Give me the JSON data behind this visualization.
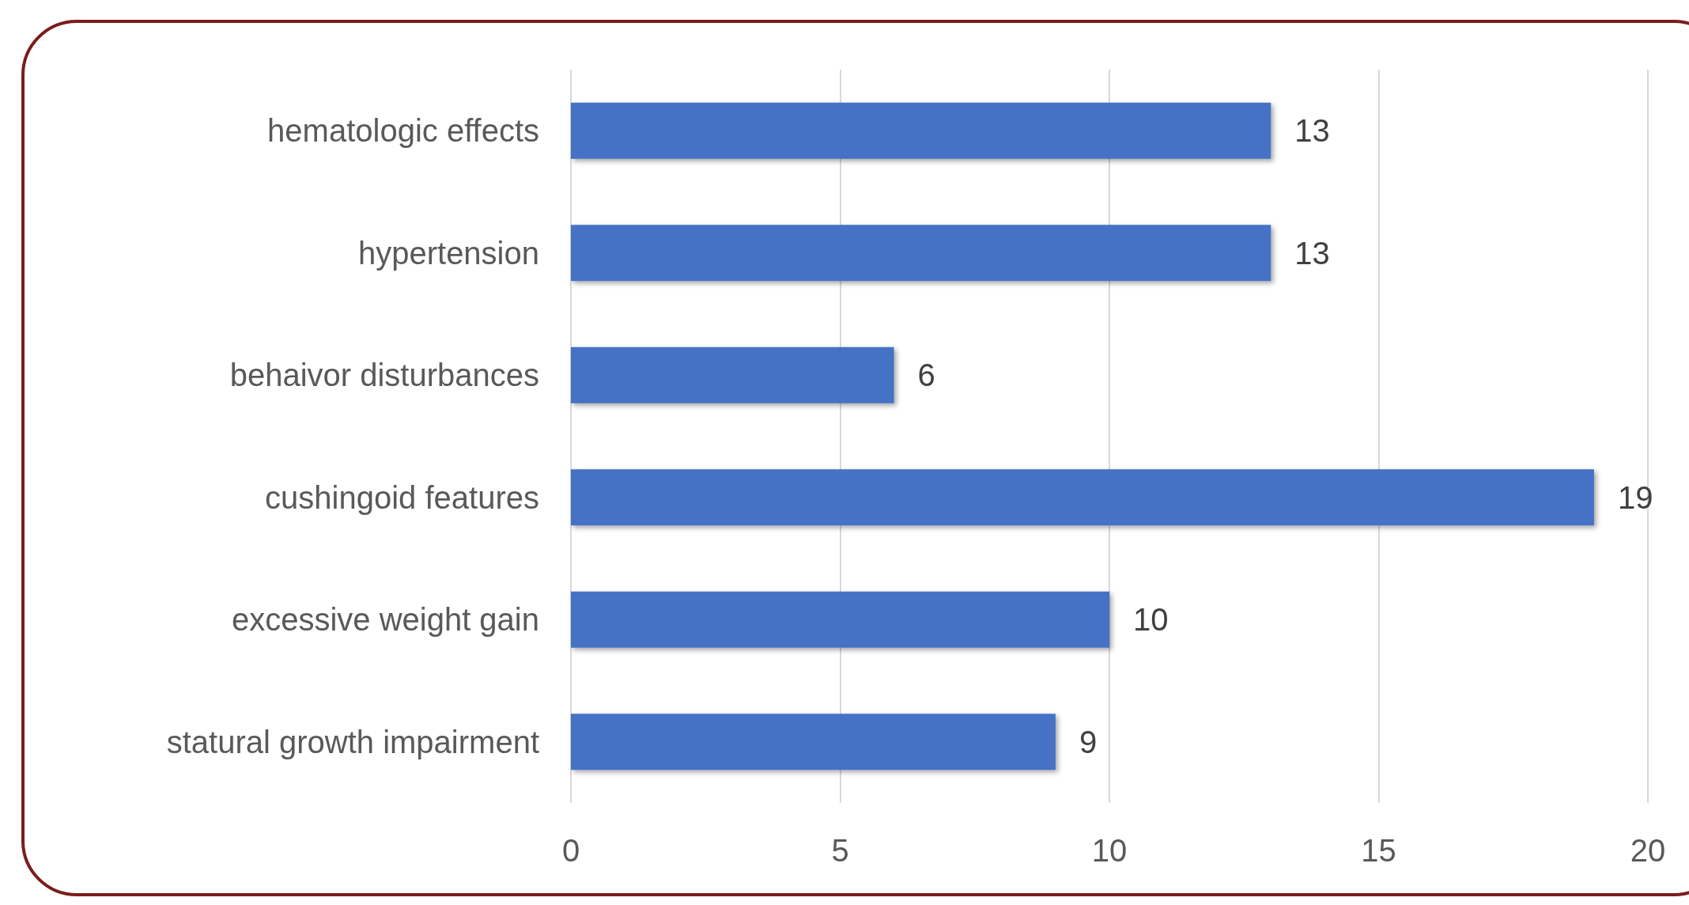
{
  "chart_data": {
    "type": "bar",
    "orientation": "horizontal",
    "categories": [
      "hematologic effects",
      "hypertension",
      "behaivor disturbances",
      "cushingoid features",
      "excessive weight gain",
      "statural growth impairment"
    ],
    "values": [
      13,
      13,
      6,
      19,
      10,
      9
    ],
    "color": "#4472c4",
    "xlim": [
      0,
      20
    ],
    "xticks": [
      0,
      5,
      10,
      15,
      20
    ],
    "grid": "x",
    "data_labels": true
  }
}
